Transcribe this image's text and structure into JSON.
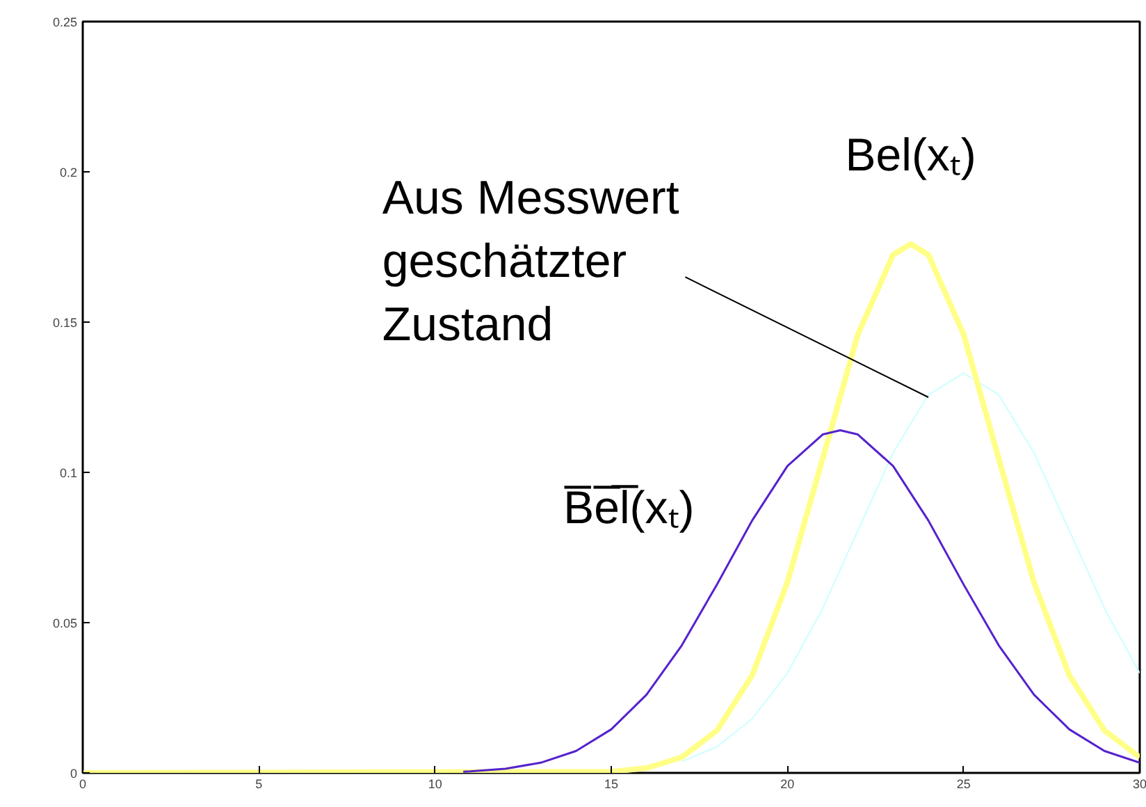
{
  "chart_data": {
    "type": "line",
    "xlim": [
      0,
      30
    ],
    "ylim": [
      0,
      0.25
    ],
    "xticks": [
      0,
      5,
      10,
      15,
      20,
      25,
      30
    ],
    "yticks": [
      0,
      0.05,
      0.1,
      0.15,
      0.2,
      0.25
    ],
    "grid": false,
    "legend": false,
    "series": [
      {
        "name": "B̅e̅l̅(xₜ)",
        "color": "#5522cc",
        "x": [
          10.8,
          11,
          12,
          13,
          14,
          15,
          16,
          17,
          18,
          19,
          20,
          21,
          21.5,
          22,
          23,
          24,
          25,
          26,
          27,
          28,
          29,
          30
        ],
        "values": [
          0.0004,
          0.0005,
          0.0014,
          0.0034,
          0.0073,
          0.0145,
          0.026,
          0.0424,
          0.0627,
          0.084,
          0.1021,
          0.1126,
          0.114,
          0.1126,
          0.1021,
          0.084,
          0.0627,
          0.0424,
          0.026,
          0.0145,
          0.0073,
          0.0034
        ]
      },
      {
        "name": "Bel(xₜ)",
        "color": "#ffff88",
        "x": [
          0,
          15,
          16,
          17,
          18,
          19,
          20,
          21,
          22,
          23,
          23.5,
          24,
          25,
          26,
          27,
          28,
          29,
          30
        ],
        "values": [
          0,
          0.0004,
          0.0016,
          0.0052,
          0.0141,
          0.0325,
          0.0634,
          0.1045,
          0.1459,
          0.1724,
          0.176,
          0.1724,
          0.1459,
          0.1045,
          0.0634,
          0.0325,
          0.0141,
          0.0052
        ]
      },
      {
        "color": "#ccffff",
        "x": [
          17,
          18,
          19,
          20,
          21,
          22,
          23,
          24,
          25,
          26,
          27,
          28,
          29,
          30
        ],
        "values": [
          0.0038,
          0.0087,
          0.018,
          0.0332,
          0.0547,
          0.0807,
          0.1065,
          0.1258,
          0.133,
          0.1258,
          0.1065,
          0.0807,
          0.0547,
          0.0332
        ]
      }
    ],
    "annotations": [
      {
        "text": "Aus Messwert\ngeschätzter\nZustand",
        "x": 24,
        "y": 0.125
      }
    ]
  }
}
